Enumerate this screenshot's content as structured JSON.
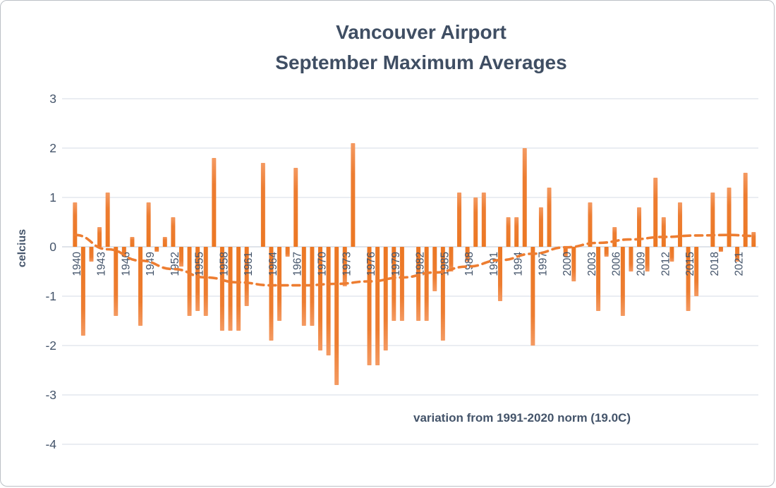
{
  "window": {
    "app": "chart-image"
  },
  "title": {
    "line1": "Vancouver Airport",
    "line2": "September Maximum Averages"
  },
  "footnote": "variation from 1991-2020 norm (19.0C)",
  "y_axis": {
    "label": "celcius",
    "ticks": [
      3,
      2,
      1,
      0,
      -1,
      -2,
      -3,
      -4
    ]
  },
  "colors": {
    "text": "#44546A",
    "bar": "#ED7D31",
    "bar_tip": "#F49A62",
    "gridline": "#dde2ea",
    "zero_line": "#ccd2dc",
    "trend": "#ED7D31",
    "border": "#bcc0c6"
  },
  "chart_data": {
    "type": "bar",
    "title": "Vancouver Airport September Maximum Averages",
    "xlabel": "",
    "ylabel": "celcius",
    "ylim": [
      -4,
      3
    ],
    "grid": true,
    "annotation": "variation from 1991-2020 norm (19.0C)",
    "x_tick_labels": [
      "1940",
      "1943",
      "1946",
      "1949",
      "1952",
      "1955",
      "1958",
      "1961",
      "1964",
      "1967",
      "1970",
      "1973",
      "1976",
      "1979",
      "1982",
      "1985",
      "1988",
      "1991",
      "1994",
      "1997",
      "2000",
      "2003",
      "2006",
      "2009",
      "2012",
      "2015",
      "2018",
      "2021"
    ],
    "years": [
      1940,
      1941,
      1942,
      1943,
      1944,
      1945,
      1946,
      1947,
      1948,
      1949,
      1950,
      1951,
      1952,
      1953,
      1954,
      1955,
      1956,
      1957,
      1958,
      1959,
      1960,
      1961,
      1962,
      1963,
      1964,
      1965,
      1966,
      1967,
      1968,
      1969,
      1970,
      1971,
      1972,
      1973,
      1974,
      1975,
      1976,
      1977,
      1978,
      1979,
      1980,
      1981,
      1982,
      1983,
      1984,
      1985,
      1986,
      1987,
      1988,
      1989,
      1990,
      1991,
      1992,
      1993,
      1994,
      1995,
      1996,
      1997,
      1998,
      1999,
      2000,
      2001,
      2002,
      2003,
      2004,
      2005,
      2006,
      2007,
      2008,
      2009,
      2010,
      2011,
      2012,
      2013,
      2014,
      2015,
      2016,
      2017,
      2018,
      2019,
      2020,
      2021,
      2022,
      2023
    ],
    "values": [
      0.9,
      -1.8,
      -0.3,
      0.4,
      1.1,
      -1.4,
      -0.2,
      0.2,
      -1.6,
      0.9,
      -0.1,
      0.2,
      0.6,
      -0.4,
      -1.4,
      -1.3,
      -1.4,
      1.8,
      -1.7,
      -1.7,
      -1.7,
      -1.2,
      0.0,
      1.7,
      -1.9,
      -1.5,
      -0.2,
      1.6,
      -1.6,
      -1.6,
      -2.1,
      -2.2,
      -2.8,
      -0.8,
      2.1,
      0.0,
      -2.4,
      -2.4,
      -2.1,
      -1.5,
      -1.5,
      0.0,
      -1.5,
      -1.5,
      -0.9,
      -1.9,
      -0.5,
      1.1,
      -0.3,
      1.0,
      1.1,
      0.0,
      -1.1,
      0.6,
      0.6,
      2.0,
      -2.0,
      0.8,
      1.2,
      0.0,
      -0.2,
      -0.7,
      0.0,
      0.9,
      -1.3,
      -0.2,
      0.4,
      -1.4,
      -0.5,
      0.8,
      -0.5,
      1.4,
      0.6,
      -0.3,
      0.9,
      -1.3,
      -1.0,
      0.0,
      1.1,
      -0.1,
      1.2,
      -0.3,
      1.5,
      0.3
    ],
    "trend": {
      "style": "dashed",
      "points": [
        [
          1940,
          0.24
        ],
        [
          1944,
          -0.05
        ],
        [
          1948,
          -0.28
        ],
        [
          1952,
          -0.45
        ],
        [
          1956,
          -0.62
        ],
        [
          1960,
          -0.72
        ],
        [
          1964,
          -0.78
        ],
        [
          1968,
          -0.78
        ],
        [
          1972,
          -0.75
        ],
        [
          1976,
          -0.7
        ],
        [
          1980,
          -0.62
        ],
        [
          1984,
          -0.52
        ],
        [
          1988,
          -0.4
        ],
        [
          1992,
          -0.27
        ],
        [
          1996,
          -0.14
        ],
        [
          2000,
          -0.01
        ],
        [
          2004,
          0.08
        ],
        [
          2008,
          0.15
        ],
        [
          2012,
          0.2
        ],
        [
          2016,
          0.23
        ],
        [
          2020,
          0.24
        ],
        [
          2023,
          0.22
        ]
      ]
    },
    "legend": []
  }
}
